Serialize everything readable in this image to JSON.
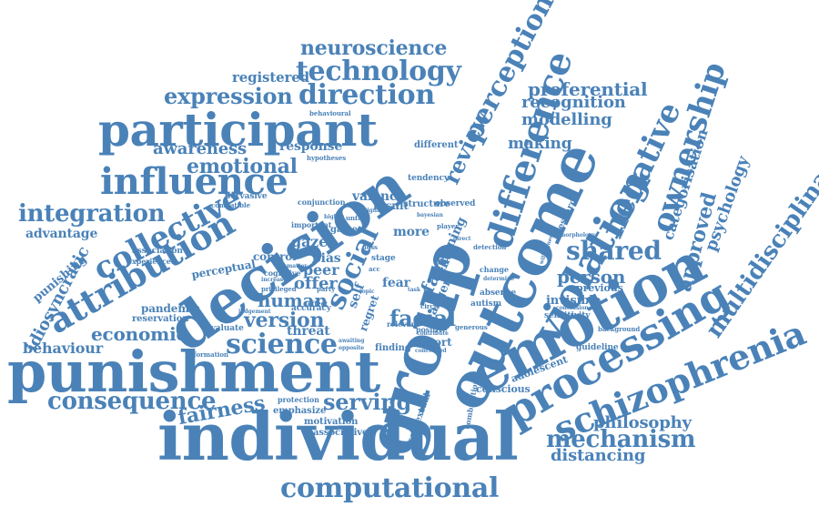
{
  "cloud": {
    "color": "#4a82b8",
    "words": [
      {
        "text": "individual"
      },
      {
        "text": "punishment"
      },
      {
        "text": "group"
      },
      {
        "text": "decision"
      },
      {
        "text": "outcome"
      },
      {
        "text": "emotion"
      },
      {
        "text": "participant"
      },
      {
        "text": "processing"
      },
      {
        "text": "schizophrenia"
      },
      {
        "text": "violation"
      },
      {
        "text": "difference"
      },
      {
        "text": "attribution"
      },
      {
        "text": "influence"
      },
      {
        "text": "collective"
      },
      {
        "text": "computational"
      },
      {
        "text": "multidisciplinary"
      },
      {
        "text": "ownership"
      },
      {
        "text": "negative"
      },
      {
        "text": "technology"
      },
      {
        "text": "direction"
      },
      {
        "text": "perception"
      },
      {
        "text": "expression"
      },
      {
        "text": "science"
      },
      {
        "text": "social"
      },
      {
        "text": "shared"
      },
      {
        "text": "mechanism"
      },
      {
        "text": "consequence"
      },
      {
        "text": "fairness"
      },
      {
        "text": "integration"
      },
      {
        "text": "neuroscience"
      },
      {
        "text": "emotional"
      },
      {
        "text": "economic"
      },
      {
        "text": "behaviour"
      },
      {
        "text": "idiosyncratic"
      },
      {
        "text": "serving"
      },
      {
        "text": "philosophy"
      },
      {
        "text": "distancing"
      },
      {
        "text": "version"
      },
      {
        "text": "human"
      },
      {
        "text": "facial"
      },
      {
        "text": "review"
      },
      {
        "text": "approved"
      },
      {
        "text": "psychology"
      },
      {
        "text": "categorisation"
      },
      {
        "text": "person"
      },
      {
        "text": "preferential"
      },
      {
        "text": "recognition"
      },
      {
        "text": "modelling"
      },
      {
        "text": "making"
      },
      {
        "text": "awareness"
      },
      {
        "text": "response"
      },
      {
        "text": "registered"
      },
      {
        "text": "advantage"
      },
      {
        "text": "punishing"
      },
      {
        "text": "pandemic"
      },
      {
        "text": "reservation"
      },
      {
        "text": "threat"
      },
      {
        "text": "offer"
      },
      {
        "text": "peer"
      },
      {
        "text": "gaze"
      },
      {
        "text": "bias"
      },
      {
        "text": "valence"
      },
      {
        "text": "perceptual"
      },
      {
        "text": "control"
      },
      {
        "text": "conjunction"
      },
      {
        "text": "evaluate"
      },
      {
        "text": "emphasize"
      },
      {
        "text": "motivation"
      },
      {
        "text": "associative"
      },
      {
        "text": "protection"
      },
      {
        "text": "contextual"
      },
      {
        "text": "conscious"
      },
      {
        "text": "adolescent"
      },
      {
        "text": "guideline"
      },
      {
        "text": "invisible"
      },
      {
        "text": "previous"
      },
      {
        "text": "sensitivity"
      },
      {
        "text": "research"
      },
      {
        "text": "different"
      },
      {
        "text": "tendency"
      },
      {
        "text": "result"
      },
      {
        "text": "structure"
      },
      {
        "text": "observed"
      },
      {
        "text": "game"
      },
      {
        "text": "more"
      },
      {
        "text": "stage"
      },
      {
        "text": "fear"
      },
      {
        "text": "anger"
      },
      {
        "text": "face"
      },
      {
        "text": "other"
      },
      {
        "text": "joining"
      },
      {
        "text": "report"
      },
      {
        "text": "positive"
      },
      {
        "text": "finding"
      },
      {
        "text": "relevant"
      },
      {
        "text": "self"
      },
      {
        "text": "regret"
      },
      {
        "text": "accuracy"
      },
      {
        "text": "important"
      },
      {
        "text": "pervasive"
      },
      {
        "text": "association"
      },
      {
        "text": "experienced"
      },
      {
        "text": "information"
      },
      {
        "text": "behavioural"
      },
      {
        "text": "hypotheses"
      },
      {
        "text": "compatible"
      },
      {
        "text": "privileged"
      },
      {
        "text": "cognitive"
      },
      {
        "text": "absence"
      },
      {
        "text": "change"
      },
      {
        "text": "autism"
      },
      {
        "text": "detection"
      },
      {
        "text": "background"
      },
      {
        "text": "conclusion"
      },
      {
        "text": "generous"
      },
      {
        "text": "combination"
      },
      {
        "text": "circle"
      },
      {
        "text": "share"
      },
      {
        "text": "unfair"
      },
      {
        "text": "player"
      },
      {
        "text": "effect"
      },
      {
        "text": "loss"
      },
      {
        "text": "party"
      },
      {
        "text": "judgement"
      },
      {
        "text": "increase"
      },
      {
        "text": "concerned"
      },
      {
        "text": "contribute"
      },
      {
        "text": "awaiting"
      },
      {
        "text": "opposite"
      },
      {
        "text": "determine"
      },
      {
        "text": "willingness"
      },
      {
        "text": "bayesian"
      },
      {
        "text": "morphology"
      },
      {
        "text": "task"
      },
      {
        "text": "matter"
      },
      {
        "text": "acc"
      },
      {
        "text": "signal"
      },
      {
        "text": "higher"
      },
      {
        "text": "direct"
      },
      {
        "text": "topic"
      }
    ]
  }
}
